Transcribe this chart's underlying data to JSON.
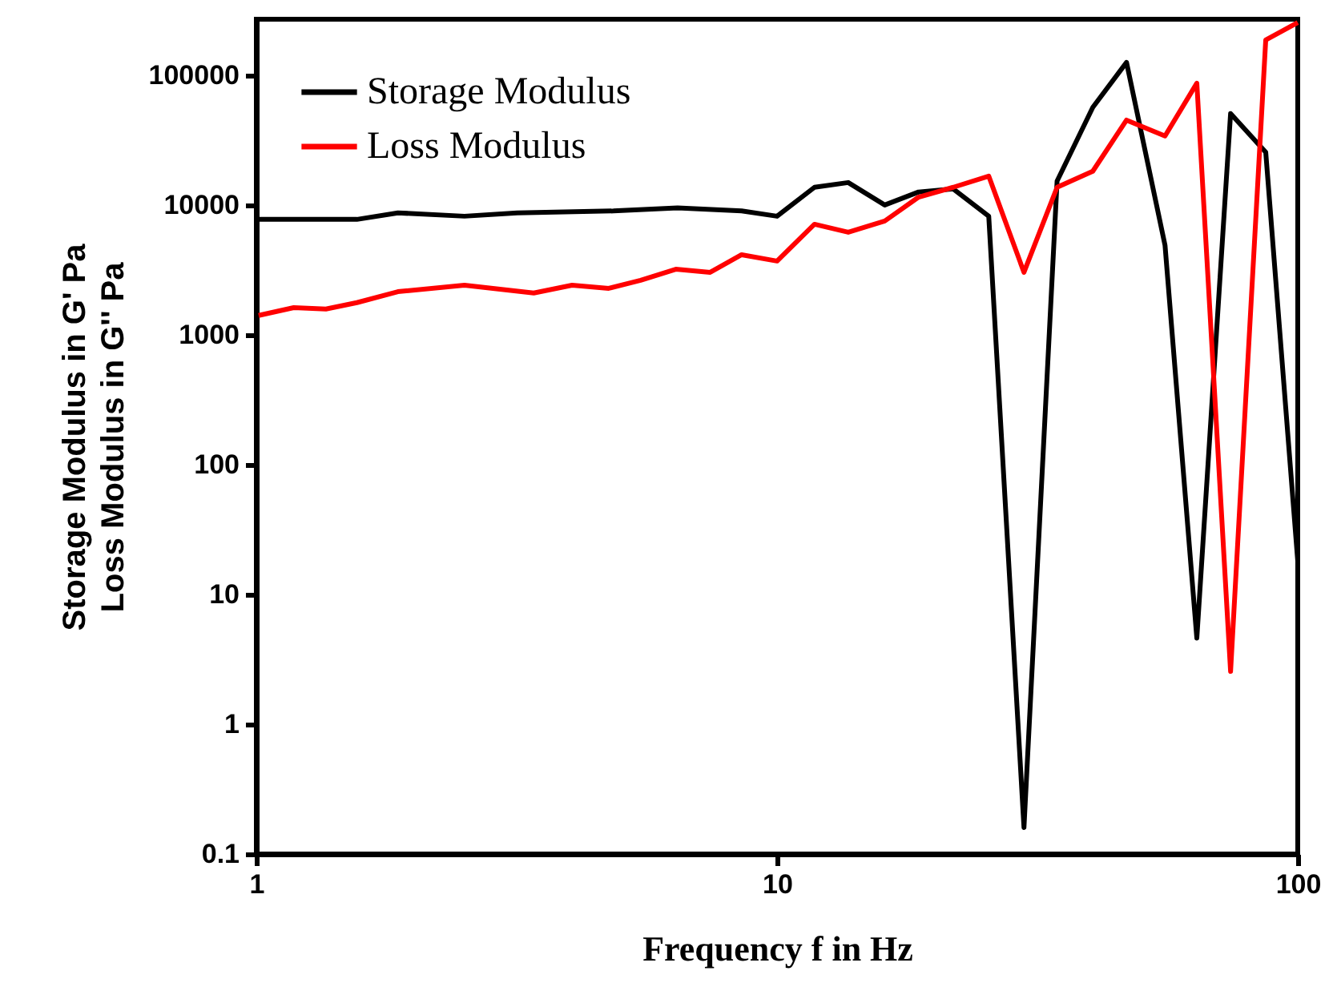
{
  "chart_data": {
    "type": "line",
    "xlabel": "Frequency f in Hz",
    "ylabel": "Storage Modulus in G' Pa\nLoss Modulus in G'' Pa",
    "log": "xy",
    "xlim": [
      1,
      100
    ],
    "xticks": [
      1,
      10,
      100
    ],
    "ylim": [
      0.1,
      270000
    ],
    "yticks": [
      0.1,
      1,
      10,
      100,
      1000,
      10000,
      100000
    ],
    "legend": "top left",
    "grid": false,
    "series": [
      {
        "name": "Storage Modulus",
        "color": "#000000",
        "x": [
          1.01,
          1.56,
          1.87,
          2.51,
          3.17,
          4.85,
          6.44,
          8.55,
          10,
          11.8,
          13.7,
          16.1,
          18.7,
          21.8,
          25.5,
          29.8,
          34.5,
          40.4,
          46.9,
          55.6,
          64,
          74.3,
          86.8,
          100
        ],
        "values": [
          7750,
          7750,
          8700,
          8200,
          8700,
          9000,
          9500,
          9000,
          8200,
          13700,
          14900,
          10000,
          12600,
          13300,
          8200,
          0.16,
          15300,
          56600,
          125600,
          4900,
          4.6,
          50600,
          25500,
          18
        ]
      },
      {
        "name": "Loss Modulus",
        "color": "#ff0000",
        "x": [
          1.01,
          1.18,
          1.36,
          1.56,
          1.87,
          2.51,
          3.41,
          4.04,
          4.75,
          5.47,
          6.39,
          7.44,
          8.55,
          10,
          11.8,
          13.7,
          16.1,
          18.7,
          21.8,
          25.5,
          29.8,
          34.5,
          40.4,
          46.9,
          55.6,
          64,
          74.3,
          86.8,
          100
        ],
        "values": [
          1410,
          1620,
          1580,
          1770,
          2150,
          2410,
          2100,
          2410,
          2280,
          2630,
          3200,
          3030,
          4140,
          3700,
          7110,
          6170,
          7530,
          11500,
          13700,
          16700,
          3030,
          13700,
          18200,
          45100,
          34000,
          86800,
          2.55,
          187000,
          255000
        ]
      }
    ]
  }
}
